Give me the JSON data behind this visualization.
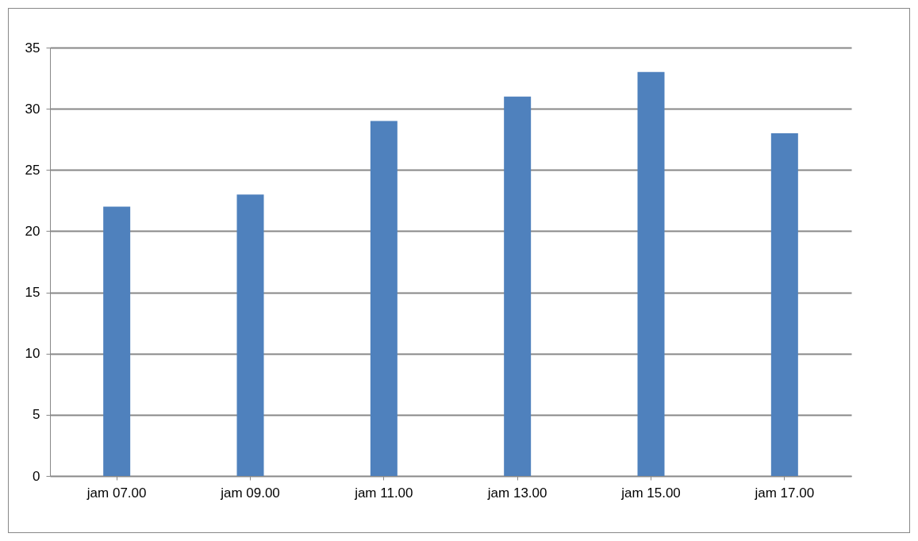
{
  "chart_data": {
    "type": "bar",
    "categories": [
      "jam 07.00",
      "jam 09.00",
      "jam 11.00",
      "jam 13.00",
      "jam 15.00",
      "jam 17.00"
    ],
    "values": [
      22,
      23,
      29,
      31,
      33,
      28
    ],
    "color": "#4f81bd",
    "ylim": [
      0,
      35
    ],
    "yticks": [
      0,
      5,
      10,
      15,
      20,
      25,
      30,
      35
    ],
    "grid": "y"
  }
}
